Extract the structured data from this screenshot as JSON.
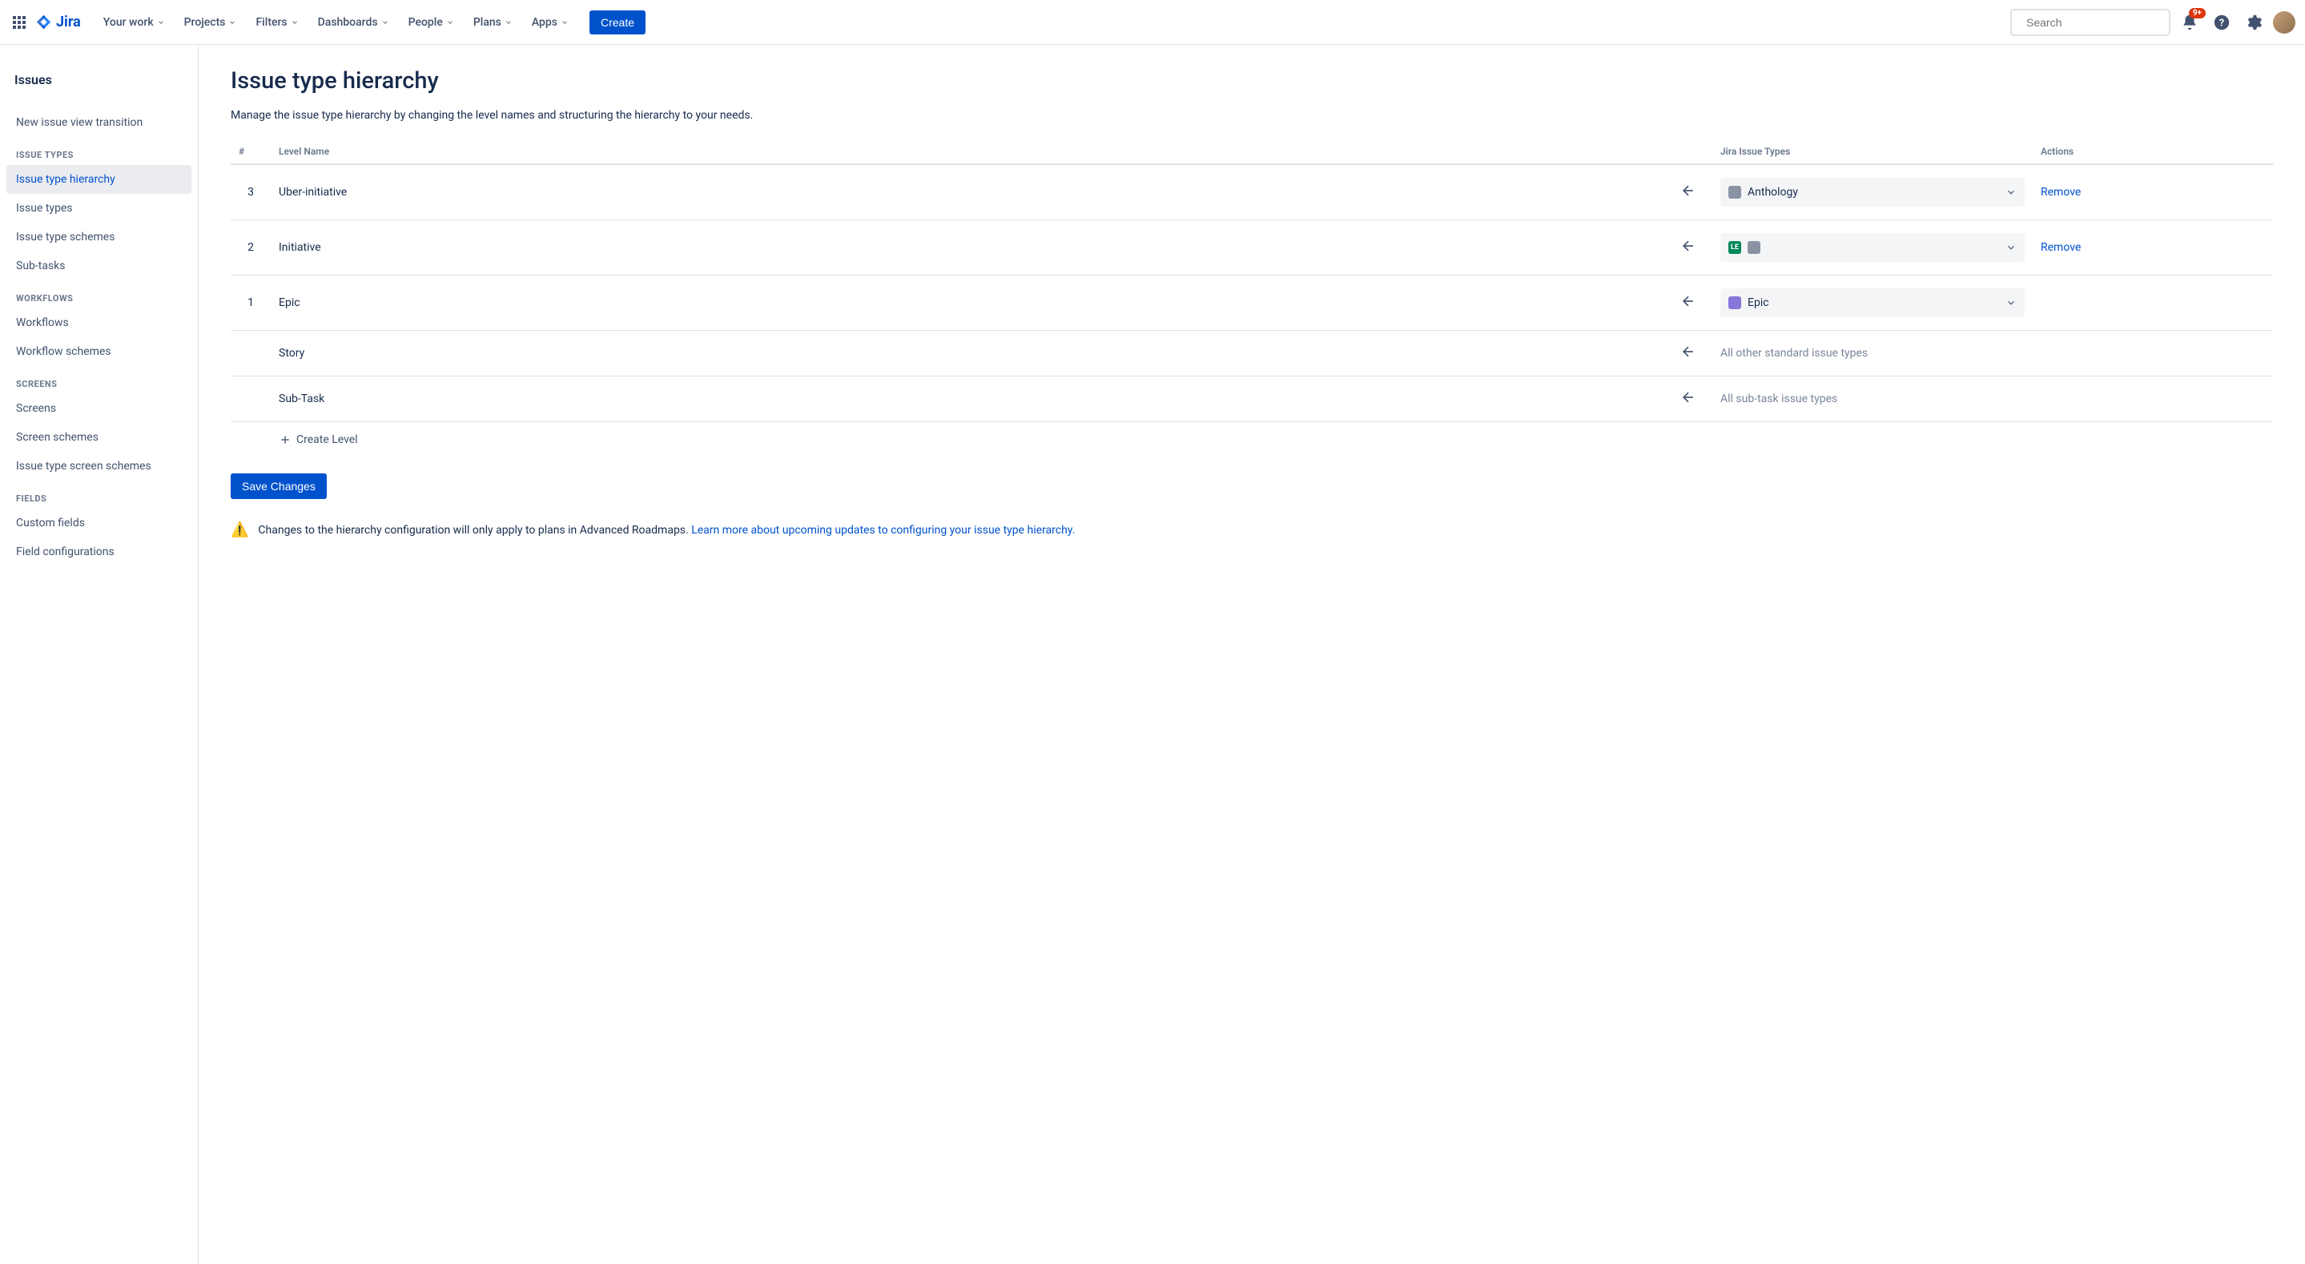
{
  "brand": {
    "name": "Jira"
  },
  "topnav": {
    "items": [
      {
        "label": "Your work"
      },
      {
        "label": "Projects"
      },
      {
        "label": "Filters"
      },
      {
        "label": "Dashboards"
      },
      {
        "label": "People"
      },
      {
        "label": "Plans"
      },
      {
        "label": "Apps"
      }
    ],
    "create": "Create",
    "search_placeholder": "Search",
    "notification_badge": "9+"
  },
  "sidebar": {
    "heading": "Issues",
    "top_link": "New issue view transition",
    "groups": [
      {
        "title": "ISSUE TYPES",
        "items": [
          {
            "label": "Issue type hierarchy",
            "active": true
          },
          {
            "label": "Issue types"
          },
          {
            "label": "Issue type schemes"
          },
          {
            "label": "Sub-tasks"
          }
        ]
      },
      {
        "title": "WORKFLOWS",
        "items": [
          {
            "label": "Workflows"
          },
          {
            "label": "Workflow schemes"
          }
        ]
      },
      {
        "title": "SCREENS",
        "items": [
          {
            "label": "Screens"
          },
          {
            "label": "Screen schemes"
          },
          {
            "label": "Issue type screen schemes"
          }
        ]
      },
      {
        "title": "FIELDS",
        "items": [
          {
            "label": "Custom fields"
          },
          {
            "label": "Field configurations"
          }
        ]
      }
    ]
  },
  "page": {
    "title": "Issue type hierarchy",
    "description": "Manage the issue type hierarchy by changing the level names and structuring the hierarchy to your needs.",
    "columns": {
      "num": "#",
      "name": "Level Name",
      "types": "Jira Issue Types",
      "actions": "Actions"
    },
    "rows": [
      {
        "num": "3",
        "name": "Uber-initiative",
        "type_label": "Anthology",
        "tags": [
          {
            "text": "",
            "bg": "#8993A4"
          }
        ],
        "removable": true
      },
      {
        "num": "2",
        "name": "Initiative",
        "type_label": "",
        "tags": [
          {
            "text": "LE",
            "bg": "#00875A"
          },
          {
            "text": "",
            "bg": "#8993A4"
          }
        ],
        "removable": true
      },
      {
        "num": "1",
        "name": "Epic",
        "type_label": "Epic",
        "tags": [
          {
            "text": "",
            "bg": "#8777D9"
          }
        ],
        "removable": false
      },
      {
        "num": "",
        "name": "Story",
        "type_label": "All other standard issue types",
        "plain": true
      },
      {
        "num": "",
        "name": "Sub-Task",
        "type_label": "All sub-task issue types",
        "plain": true
      }
    ],
    "remove_label": "Remove",
    "create_level": "Create Level",
    "save": "Save Changes",
    "notice_text": "Changes to the hierarchy configuration will only apply to plans in Advanced Roadmaps. ",
    "notice_link": "Learn more about upcoming updates to configuring your issue type hierarchy."
  }
}
